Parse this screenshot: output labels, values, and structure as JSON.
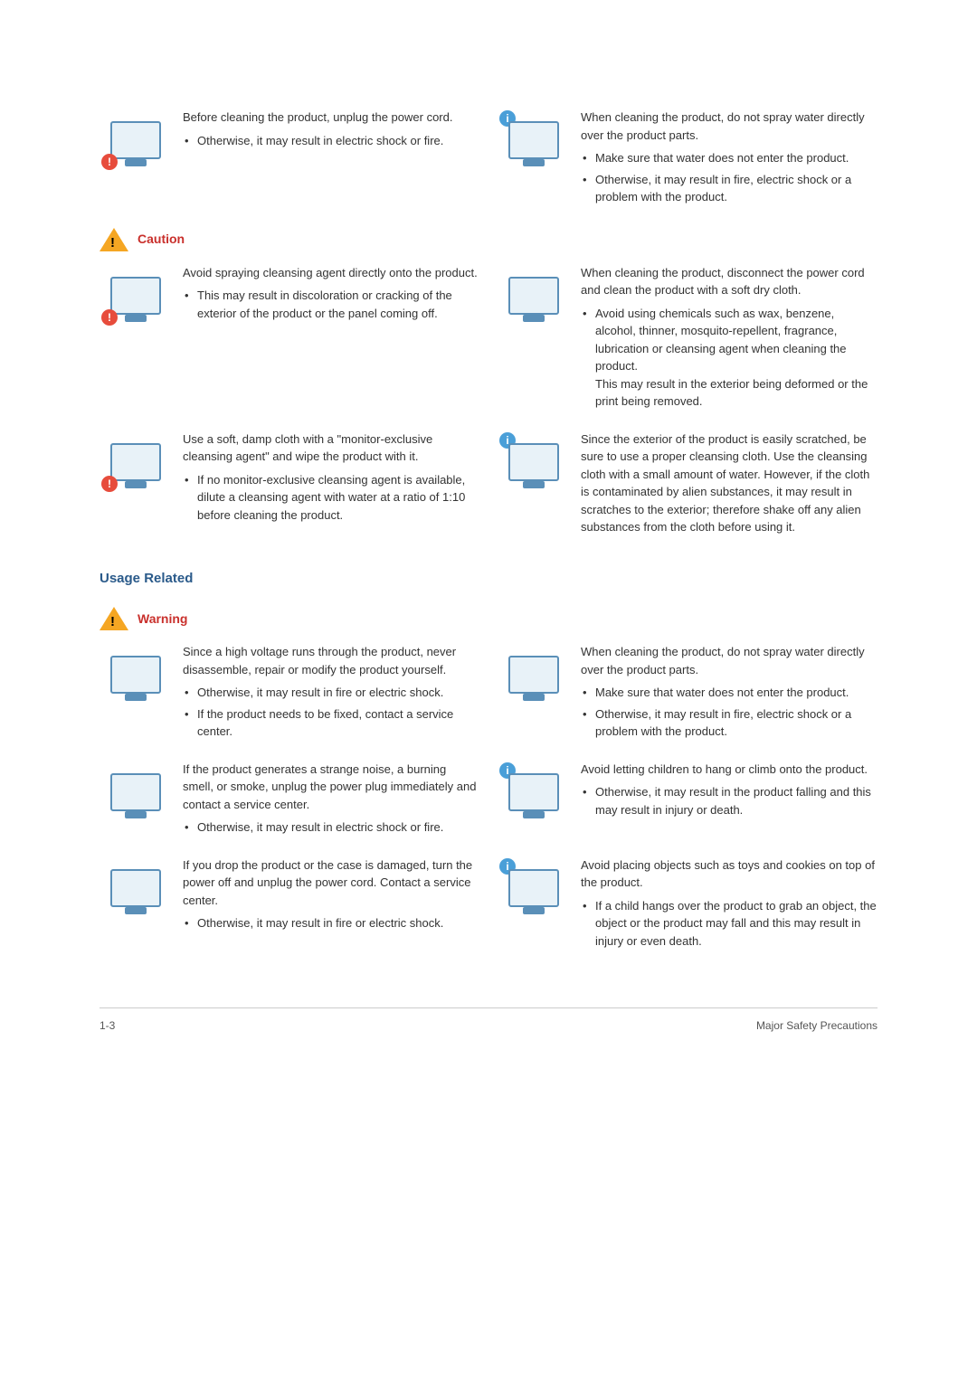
{
  "sections": {
    "caution_label": "Caution",
    "warning_label": "Warning",
    "usage_title": "Usage Related"
  },
  "items": {
    "unplug_clean": {
      "main": "Before cleaning the product, unplug the power cord.",
      "b1": "Otherwise, it may result in electric shock or fire."
    },
    "no_spray_1": {
      "main": "When cleaning the product, do not spray water directly over the product parts.",
      "b1": "Make sure that water does not enter the product.",
      "b2": "Otherwise, it may result in fire, electric shock or a problem with the product."
    },
    "no_cleansing_agent": {
      "main": "Avoid spraying cleansing agent directly onto the product.",
      "b1": "This may result in discoloration or cracking of the exterior of the product or the panel coming off."
    },
    "disconnect_dry_cloth": {
      "main": "When cleaning the product, disconnect the power cord and clean the product with a soft dry cloth.",
      "b1": "Avoid using chemicals such as wax, benzene, alcohol, thinner, mosquito-repellent, fragrance, lubrication or cleansing agent when cleaning the product.",
      "b1_extra": "This may result in the exterior being deformed or the print being removed."
    },
    "damp_cloth": {
      "main": "Use a soft, damp cloth with a \"monitor-exclusive cleansing agent\" and wipe the product with it.",
      "b1": "If no monitor-exclusive cleansing agent is available, dilute a cleansing agent with water at a ratio of 1:10 before cleaning the product."
    },
    "scratch_warning": {
      "main": "Since the exterior of the product is easily scratched, be sure to use a proper cleansing cloth. Use the cleansing cloth with a small amount of water. However, if the cloth is contaminated by alien substances, it may result in scratches to the exterior; therefore shake off any alien substances from the cloth before using it."
    },
    "high_voltage": {
      "main": "Since a high voltage runs through the product, never disassemble, repair or modify the product yourself.",
      "b1": "Otherwise, it may result in fire or electric shock.",
      "b2": "If the product needs to be fixed, contact a service center."
    },
    "no_spray_2": {
      "main": "When cleaning the product, do not spray water directly over the product parts.",
      "b1": "Make sure that water does not enter the product.",
      "b2": "Otherwise, it may result in fire, electric shock or a problem with the product."
    },
    "strange_noise": {
      "main": "If the product generates a strange noise, a burning smell, or smoke, unplug the power plug immediately and contact a service center.",
      "b1": "Otherwise, it may result in electric shock or fire."
    },
    "children_climb": {
      "main": "Avoid letting children to hang or climb onto the product.",
      "b1": "Otherwise, it may result in the product falling and this may result in injury or death."
    },
    "drop_damage": {
      "main": "If you drop the product or the case is damaged, turn the power off and unplug the power cord. Contact a service center.",
      "b1": "Otherwise, it may result in fire or electric shock."
    },
    "toys_cookies": {
      "main": "Avoid placing objects such as toys and cookies on top of the product.",
      "b1": "If a child hangs over the product to grab an object, the object or the product may fall and this may result in injury or even death."
    }
  },
  "footer": {
    "page": "1-3",
    "label": "Major Safety Precautions"
  },
  "colors": {
    "heading": "#2a5a8a",
    "alert_text": "#c9302c",
    "alert_triangle": "#f5a623",
    "info_badge": "#4a9fd8",
    "warn_badge": "#e74c3c",
    "monitor_border": "#5a8fb8",
    "monitor_fill": "#e8f2f8"
  }
}
